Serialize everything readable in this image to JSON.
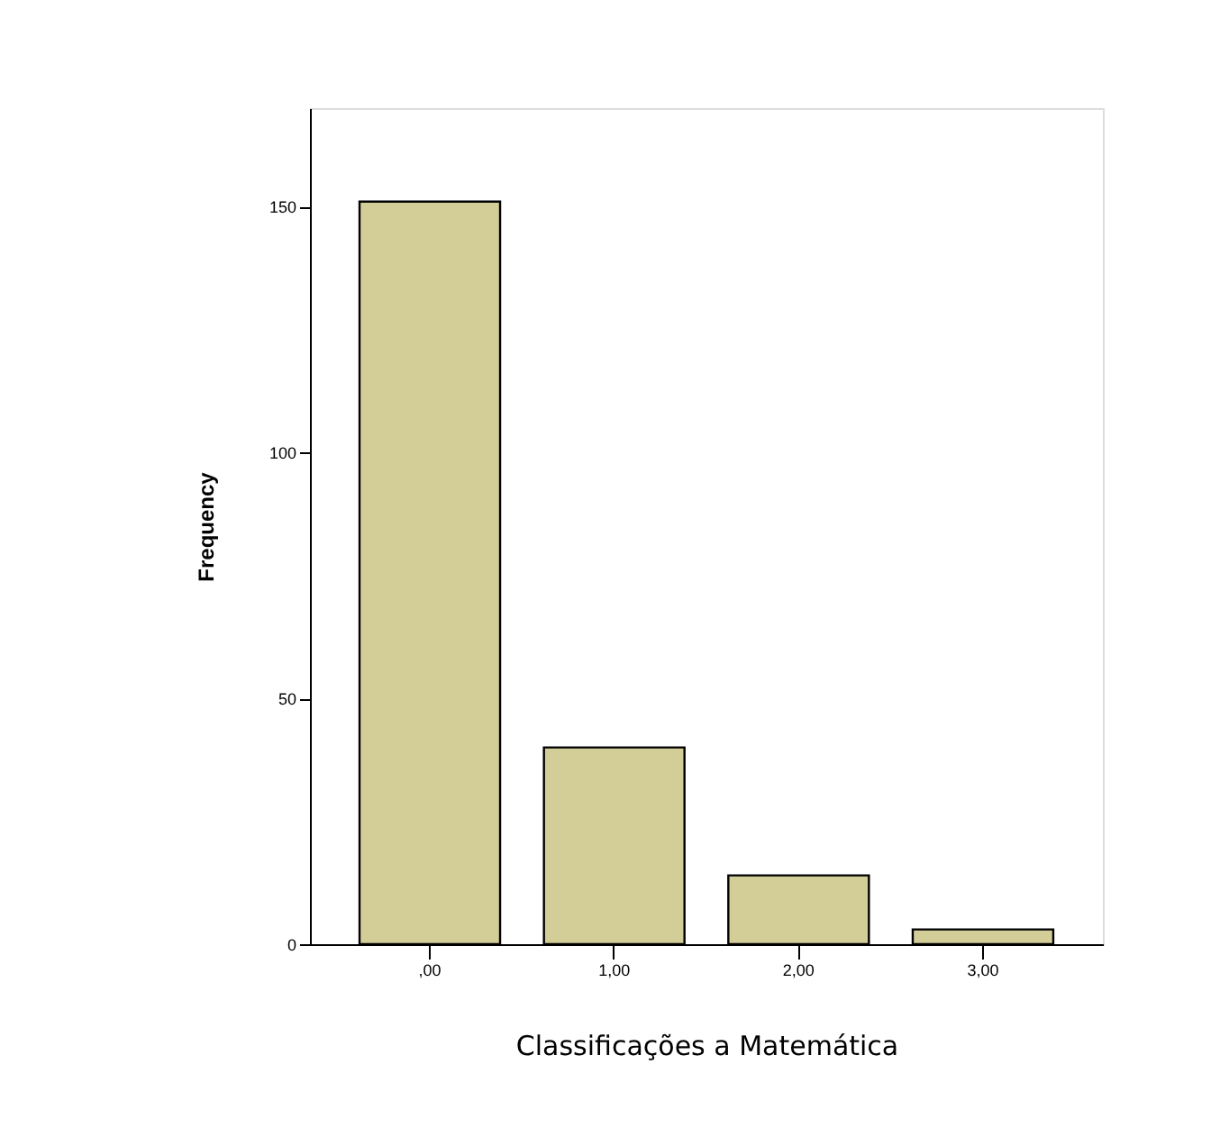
{
  "chart_data": {
    "type": "bar",
    "xlabel": "Classificações a Matemática",
    "ylabel": "Frequency",
    "categories": [
      ",00",
      "1,00",
      "2,00",
      "3,00"
    ],
    "values": [
      151,
      40,
      14,
      3
    ],
    "color": "#d3cd98",
    "ylim": [
      0,
      170
    ],
    "yticks": [
      0,
      50,
      100,
      150
    ],
    "grid": false
  }
}
